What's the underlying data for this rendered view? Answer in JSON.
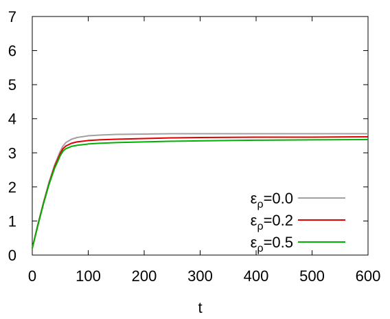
{
  "chart_data": {
    "type": "line",
    "title": "",
    "xlabel": "t",
    "ylabel": "",
    "xlim": [
      0,
      600
    ],
    "ylim": [
      0,
      7
    ],
    "xticks": [
      0,
      100,
      200,
      300,
      400,
      500,
      600
    ],
    "yticks": [
      0,
      1,
      2,
      3,
      4,
      5,
      6,
      7
    ],
    "grid": false,
    "legend_position": "bottom-right",
    "series": [
      {
        "name": "ε",
        "name_sub": "ρ",
        "name_value": "=0.0",
        "color": "#a0a0a0",
        "x": [
          0,
          10,
          20,
          30,
          40,
          50,
          55,
          60,
          70,
          80,
          100,
          120,
          150,
          200,
          250,
          300,
          400,
          500,
          600
        ],
        "y": [
          0.2,
          0.9,
          1.55,
          2.15,
          2.65,
          3.05,
          3.2,
          3.3,
          3.4,
          3.45,
          3.5,
          3.52,
          3.54,
          3.55,
          3.56,
          3.56,
          3.56,
          3.56,
          3.56
        ]
      },
      {
        "name": "ε",
        "name_sub": "ρ",
        "name_value": "=0.2",
        "color": "#e00000",
        "x": [
          0,
          10,
          20,
          30,
          40,
          50,
          55,
          60,
          70,
          80,
          100,
          120,
          150,
          200,
          250,
          300,
          400,
          500,
          600
        ],
        "y": [
          0.2,
          0.88,
          1.52,
          2.1,
          2.6,
          2.98,
          3.12,
          3.2,
          3.28,
          3.32,
          3.36,
          3.38,
          3.4,
          3.42,
          3.44,
          3.45,
          3.46,
          3.46,
          3.47
        ]
      },
      {
        "name": "ε",
        "name_sub": "ρ",
        "name_value": "=0.5",
        "color": "#00b000",
        "x": [
          0,
          10,
          20,
          30,
          40,
          50,
          55,
          60,
          70,
          80,
          100,
          120,
          150,
          200,
          250,
          300,
          400,
          500,
          600
        ],
        "y": [
          0.2,
          0.86,
          1.5,
          2.08,
          2.55,
          2.92,
          3.05,
          3.12,
          3.19,
          3.22,
          3.26,
          3.28,
          3.3,
          3.32,
          3.34,
          3.35,
          3.37,
          3.38,
          3.39
        ]
      }
    ]
  }
}
